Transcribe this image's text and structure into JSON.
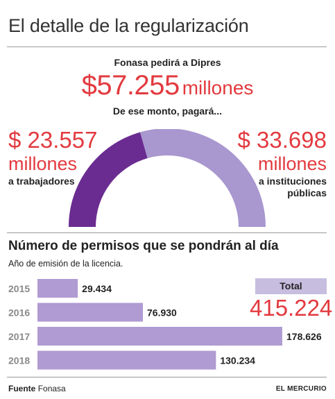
{
  "header": {
    "title": "El detalle de la regularización"
  },
  "summary": {
    "lead": "Fonasa pedirá a Dipres",
    "total_value": "$57.255",
    "total_unit": "millones",
    "sub_lead": "De ese monto, pagará..."
  },
  "split": {
    "left": {
      "value": "$ 23.557",
      "unit": "millones",
      "label": "a trabajadores"
    },
    "right": {
      "value": "$ 33.698",
      "unit": "millones",
      "label": "a instituciones públicas"
    }
  },
  "colors": {
    "accent_red": "#e23a3f",
    "dark_purple": "#6a2c91",
    "light_purple": "#a997cf",
    "bar_purple": "#b09bd2"
  },
  "bar_section": {
    "title": "Número de permisos que se pondrán al día",
    "subtitle": "Año de emisión de la licencia.",
    "total_label": "Total",
    "total_value": "415.224"
  },
  "chart_data": [
    {
      "type": "pie",
      "title": "",
      "slices": [
        {
          "label": "a trabajadores",
          "value": 23557
        },
        {
          "label": "a instituciones públicas",
          "value": 33698
        }
      ]
    },
    {
      "type": "bar",
      "title": "Número de permisos que se pondrán al día",
      "subtitle": "Año de emisión de la licencia.",
      "categories": [
        "2015",
        "2016",
        "2017",
        "2018"
      ],
      "values": [
        29434,
        76930,
        178626,
        130234
      ],
      "value_labels": [
        "29.434",
        "76.930",
        "178.626",
        "130.234"
      ],
      "orientation": "horizontal"
    }
  ],
  "footer": {
    "source_label": "Fuente",
    "source_name": "Fonasa",
    "brand": "EL MERCURIO"
  }
}
